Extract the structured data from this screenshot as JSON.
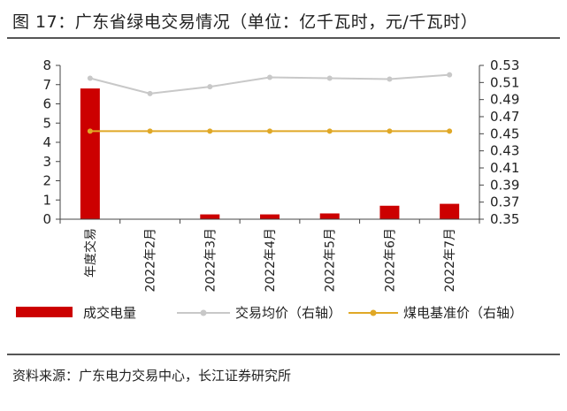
{
  "title": "图 17：广东省绿电交易情况（单位：亿千瓦时，元/千瓦时）",
  "source": "资料来源：广东电力交易中心，长江证券研究所",
  "colors": {
    "volume": "#cc0000",
    "avg_price": "#c8c8c8",
    "coal_price": "#e0a826"
  },
  "chart_data": {
    "type": "bar",
    "categories": [
      "年度交易",
      "2022年2月",
      "2022年3月",
      "2022年4月",
      "2022年5月",
      "2022年6月",
      "2022年7月"
    ],
    "series": [
      {
        "name": "成交电量",
        "type": "bar",
        "axis": "left",
        "values": [
          6.8,
          0,
          0.25,
          0.25,
          0.3,
          0.7,
          0.8
        ]
      },
      {
        "name": "交易均价（右轴）",
        "type": "line",
        "axis": "right",
        "values": [
          0.515,
          0.497,
          0.505,
          0.516,
          0.515,
          0.514,
          0.519
        ]
      },
      {
        "name": "煤电基准价（右轴）",
        "type": "line",
        "axis": "right",
        "values": [
          0.453,
          0.453,
          0.453,
          0.453,
          0.453,
          0.453,
          0.453
        ]
      }
    ],
    "ylim_left": [
      0,
      8
    ],
    "yticks_left": [
      "0",
      "1",
      "2",
      "3",
      "4",
      "5",
      "6",
      "7",
      "8"
    ],
    "ylim_right": [
      0.35,
      0.53
    ],
    "yticks_right": [
      "0.35",
      "0.37",
      "0.39",
      "0.41",
      "0.43",
      "0.45",
      "0.47",
      "0.49",
      "0.51",
      "0.53"
    ],
    "grid": false,
    "legend": "bottom"
  }
}
